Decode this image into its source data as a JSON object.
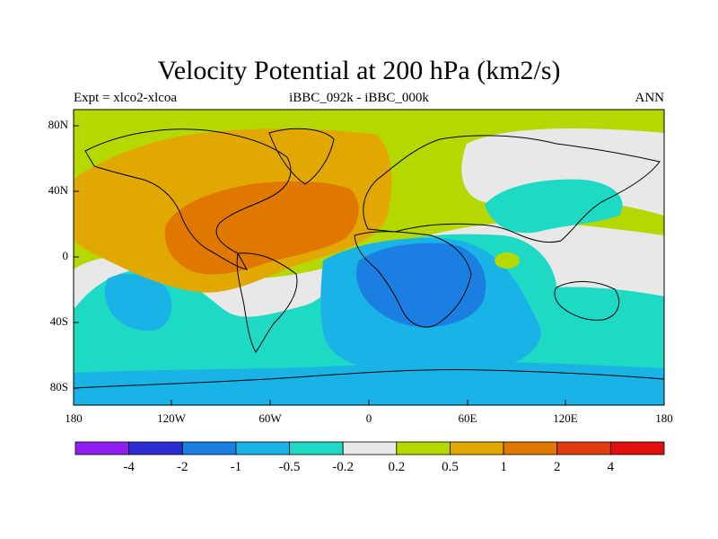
{
  "title": "Velocity Potential at 200 hPa (km2/s)",
  "left_label": "Expt = xlco2-xlcoa",
  "center_label": "iBBC_092k - iBBC_000k",
  "right_label": "ANN",
  "lat_ticks": [
    "80N",
    "40N",
    "0",
    "40S",
    "80S"
  ],
  "lon_ticks": [
    "180",
    "120W",
    "60W",
    "0",
    "60E",
    "120E",
    "180"
  ],
  "colorbar": {
    "colors": [
      "#8f1ff0",
      "#2d2dd6",
      "#1a7fe0",
      "#19b3e6",
      "#1ed9c4",
      "#e8e8e8",
      "#b5d900",
      "#e0a800",
      "#e07800",
      "#e03c12",
      "#e01010"
    ],
    "labels": [
      "-4",
      "-2",
      "-1",
      "-0.5",
      "-0.2",
      "0.2",
      "0.5",
      "1",
      "2",
      "4"
    ]
  },
  "colors": {
    "background": "#ffffff",
    "coast": "#000000"
  }
}
